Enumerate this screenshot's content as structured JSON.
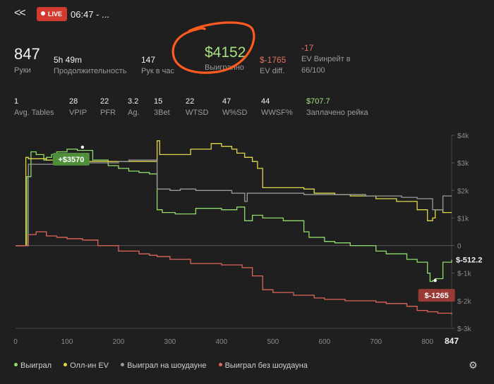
{
  "header": {
    "back_glyph": "<<",
    "live_label": "LIVE",
    "title": "06:47 - ..."
  },
  "stats_primary": {
    "hands_value": "847",
    "hands_label": "Руки",
    "duration_value": "5h 49m",
    "duration_label": "Продолжительность",
    "hands_per_hour_value": "147",
    "hands_per_hour_label": "Рук в час",
    "won_value": "$4152",
    "won_label": "Выигранно",
    "ev_diff_value": "$-1765",
    "ev_diff_label": "EV diff.",
    "ev_winrate_value": "-17",
    "ev_winrate_label_line1": "EV Винрейт в",
    "ev_winrate_label_line2": "66/100"
  },
  "stats_secondary": [
    {
      "value": "1",
      "label": "Avg. Tables"
    },
    {
      "value": "28",
      "label": "VPIP"
    },
    {
      "value": "22",
      "label": "PFR"
    },
    {
      "value": "3.2",
      "label": "Ag."
    },
    {
      "value": "15",
      "label": "3Bet"
    },
    {
      "value": "22",
      "label": "WTSD"
    },
    {
      "value": "47",
      "label": "W%SD"
    },
    {
      "value": "44",
      "label": "WWSF%"
    },
    {
      "value": "$707.7",
      "label": "Заплачено рейка"
    }
  ],
  "colors": {
    "won": "#8fdc6a",
    "allin_ev": "#e0d64a",
    "showdown": "#9a9a9a",
    "non_showdown": "#e0645a",
    "accent_circle": "#ff5a1f"
  },
  "chart_data": {
    "type": "line",
    "xlim": [
      0,
      847
    ],
    "ylim": [
      -3000,
      4000
    ],
    "x_ticks": [
      "0",
      "100",
      "200",
      "300",
      "400",
      "500",
      "600",
      "700",
      "800",
      "847"
    ],
    "y_ticks": [
      "$4k",
      "$3k",
      "$2k",
      "$1k",
      "0",
      "$-1k",
      "$-2k",
      "$-3k"
    ],
    "y_tick_values": [
      4000,
      3000,
      2000,
      1000,
      0,
      -1000,
      -2000,
      -3000
    ],
    "callouts": [
      {
        "label": "+$3570",
        "x": 130,
        "y": 3570,
        "color": "#4f8f3c"
      },
      {
        "label": "$-1265",
        "x": 815,
        "y": -1265,
        "color": "#9a3a34"
      }
    ],
    "end_label": "$-512.2",
    "series": [
      {
        "name": "Выиграл",
        "color": "#8fdc6a",
        "x": [
          0,
          20,
          22,
          30,
          40,
          55,
          60,
          70,
          80,
          100,
          110,
          120,
          150,
          180,
          200,
          220,
          240,
          260,
          270,
          275,
          285,
          310,
          330,
          350,
          380,
          400,
          430,
          440,
          445,
          460,
          480,
          520,
          560,
          570,
          600,
          620,
          650,
          680,
          700,
          720,
          760,
          780,
          800,
          805,
          810,
          815,
          830,
          847
        ],
        "y": [
          0,
          0,
          2500,
          3400,
          3300,
          3100,
          3200,
          3300,
          3400,
          3500,
          3500,
          3450,
          3100,
          2900,
          2800,
          2700,
          2650,
          2600,
          2600,
          1300,
          1200,
          1150,
          1150,
          1350,
          1350,
          1300,
          1400,
          1400,
          900,
          1100,
          1000,
          900,
          500,
          300,
          150,
          100,
          0,
          0,
          -200,
          -300,
          -500,
          -600,
          -1000,
          -1300,
          -1265,
          -1200,
          -600,
          -512
        ]
      },
      {
        "name": "Олл-ин EV",
        "color": "#e0d64a",
        "x": [
          0,
          18,
          20,
          25,
          40,
          60,
          100,
          150,
          200,
          240,
          260,
          270,
          275,
          280,
          300,
          340,
          380,
          400,
          420,
          430,
          445,
          460,
          470,
          480,
          520,
          560,
          580,
          600,
          620,
          650,
          700,
          740,
          780,
          800,
          810,
          815,
          830,
          847
        ],
        "y": [
          0,
          0,
          3200,
          3150,
          3150,
          3100,
          3050,
          3050,
          3050,
          3050,
          3050,
          3050,
          3800,
          3300,
          3300,
          3500,
          3700,
          3600,
          3500,
          3350,
          3200,
          3050,
          2800,
          2100,
          2100,
          2050,
          1900,
          1900,
          1850,
          1800,
          1700,
          1600,
          1300,
          900,
          1000,
          1300,
          1200,
          1200
        ]
      },
      {
        "name": "Выиграл на шоудауне",
        "color": "#9a9a9a",
        "x": [
          0,
          20,
          25,
          60,
          100,
          180,
          200,
          220,
          260,
          270,
          275,
          290,
          300,
          320,
          350,
          400,
          420,
          440,
          445,
          450,
          480,
          520,
          560,
          600,
          640,
          660,
          680,
          720,
          750,
          780,
          800,
          810,
          830,
          847
        ],
        "y": [
          0,
          0,
          2950,
          2950,
          3000,
          3000,
          3050,
          3100,
          3100,
          3100,
          2050,
          2050,
          2000,
          2050,
          2000,
          2000,
          1900,
          1900,
          1600,
          1900,
          1900,
          1900,
          1850,
          1850,
          1850,
          1850,
          1800,
          1800,
          1750,
          1700,
          1700,
          1300,
          1800,
          1800
        ]
      },
      {
        "name": "Выиграл без шоудауна",
        "color": "#e0645a",
        "x": [
          0,
          20,
          25,
          40,
          60,
          80,
          100,
          130,
          160,
          200,
          240,
          260,
          275,
          300,
          340,
          400,
          440,
          460,
          480,
          500,
          540,
          580,
          600,
          640,
          680,
          700,
          720,
          760,
          780,
          800,
          820,
          847
        ],
        "y": [
          0,
          0,
          400,
          500,
          350,
          300,
          250,
          200,
          0,
          -200,
          -300,
          -350,
          -400,
          -500,
          -650,
          -700,
          -800,
          -1100,
          -1600,
          -1700,
          -1800,
          -1900,
          -1950,
          -2000,
          -2000,
          -2050,
          -2100,
          -2200,
          -2350,
          -2400,
          -2450,
          -2500
        ]
      }
    ]
  }
}
